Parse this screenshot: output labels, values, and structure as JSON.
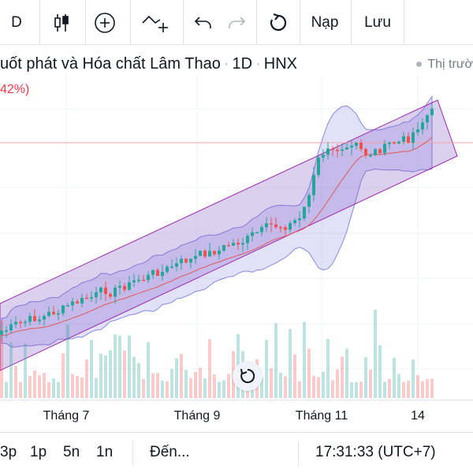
{
  "toolbar": {
    "interval_label": "D",
    "indicators_icon": "candlestick-icon",
    "add_icon": "plus-circle-icon",
    "compare_icon": "line-plus-icon",
    "undo_icon": "undo-icon",
    "redo_icon": "redo-icon",
    "reload_icon": "reload-icon",
    "load_label": "Nạp",
    "save_label": "Lưu"
  },
  "header": {
    "title_main": "uốt phát và Hóa chất Lâm Thao",
    "sep1": "·",
    "interval": "1D",
    "sep2": "·",
    "exchange": "HNX",
    "change": "42%)",
    "legend_label": "Thị trườ"
  },
  "xaxis": {
    "labels": [
      "Tháng 7",
      "Tháng 9",
      "Tháng 11",
      "14"
    ]
  },
  "bottom": {
    "ranges": [
      "3p",
      "1p",
      "5n",
      "1n"
    ],
    "goto_label": "Đến...",
    "clock": "17:31:33 (UTC+7)"
  },
  "colors": {
    "up": "#26a69a",
    "down": "#ef5350",
    "channel_fill": "#7e57c2",
    "bollinger_fill": "#5b5bd6",
    "ma_line": "#e05a5a",
    "price_line": "#f7a1a7"
  }
}
